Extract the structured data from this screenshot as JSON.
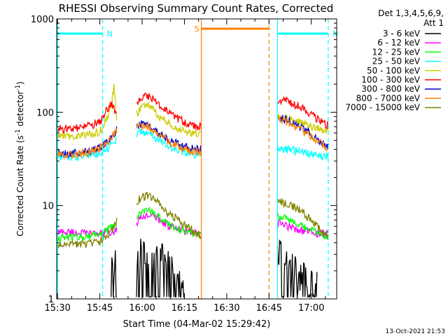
{
  "chart_data": {
    "type": "line",
    "title": "RHESSI Observing Summary Count Rates, Corrected",
    "xlabel": "Start Time (04-Mar-02 15:29:42)",
    "ylabel": "Corrected Count Rate (s-1 detector-1)",
    "ylabel_parts": {
      "pre": "Corrected Count Rate (s",
      "sup1": "-1",
      "mid": " detector",
      "sup2": "-1",
      "post": ")"
    },
    "y_scale": "log",
    "ylim": [
      1,
      1000
    ],
    "xlim": [
      "15:30",
      "17:09"
    ],
    "x_ticks": [
      "15:30",
      "15:45",
      "16:00",
      "16:15",
      "16:30",
      "16:45",
      "17:00"
    ],
    "y_ticks": [
      "1",
      "10",
      "100",
      "1000"
    ],
    "legend_header": [
      "Det 1,3,4,5,6,9,",
      "Att 1"
    ],
    "legend_position": "right",
    "footer": "13-Oct-2021 21:53",
    "gaps": [
      [
        "15:51",
        "15:58"
      ],
      [
        "16:21",
        "16:48"
      ]
    ],
    "annotations": [
      {
        "text": "N",
        "color": "#00ffff",
        "start": "15:30",
        "end": "15:46"
      },
      {
        "text": "N",
        "color": "#00ffff",
        "start": "16:48",
        "end": "17:06"
      },
      {
        "text": "S",
        "color": "#ff8000",
        "start": "16:21",
        "end": "16:45"
      }
    ],
    "series": [
      {
        "name": "3 - 6 keV",
        "color": "#000000",
        "type": "counts",
        "points": [
          [
            "15:49",
            1.8
          ],
          [
            "15:50",
            2.2
          ],
          [
            "15:51",
            2.5
          ],
          [
            "15:58",
            2.9
          ],
          [
            "16:00",
            3.3
          ],
          [
            "16:02",
            3.4
          ],
          [
            "16:04",
            3.3
          ],
          [
            "16:06",
            3.0
          ],
          [
            "16:08",
            2.5
          ],
          [
            "16:10",
            2.0
          ],
          [
            "16:12",
            1.7
          ],
          [
            "16:15",
            1.4
          ],
          [
            "16:48",
            3.0
          ],
          [
            "16:50",
            2.8
          ],
          [
            "16:52",
            2.5
          ],
          [
            "16:55",
            2.0
          ],
          [
            "16:58",
            1.7
          ],
          [
            "17:00",
            1.5
          ],
          [
            "17:02",
            1.3
          ]
        ]
      },
      {
        "name": "6 - 12 keV",
        "color": "#ff00ff",
        "points": [
          [
            "15:30",
            5.2
          ],
          [
            "15:35",
            5.2
          ],
          [
            "15:40",
            5.0
          ],
          [
            "15:45",
            5.0
          ],
          [
            "15:48",
            5.2
          ],
          [
            "15:51",
            5.5
          ],
          [
            "15:58",
            6.5
          ],
          [
            "16:00",
            7.5
          ],
          [
            "16:02",
            8.0
          ],
          [
            "16:05",
            7.5
          ],
          [
            "16:08",
            6.5
          ],
          [
            "16:10",
            6.0
          ],
          [
            "16:13",
            5.5
          ],
          [
            "16:16",
            5.3
          ],
          [
            "16:19",
            5.0
          ],
          [
            "16:21",
            5.0
          ],
          [
            "16:48",
            6.5
          ],
          [
            "16:52",
            6.0
          ],
          [
            "16:56",
            5.5
          ],
          [
            "17:00",
            5.2
          ],
          [
            "17:03",
            5.0
          ],
          [
            "17:06",
            5.0
          ]
        ]
      },
      {
        "name": "12 - 25 keV",
        "color": "#00ff00",
        "points": [
          [
            "15:30",
            4.5
          ],
          [
            "15:35",
            4.6
          ],
          [
            "15:40",
            4.7
          ],
          [
            "15:45",
            5.0
          ],
          [
            "15:48",
            5.5
          ],
          [
            "15:50",
            6.0
          ],
          [
            "15:51",
            6.3
          ],
          [
            "15:58",
            7.5
          ],
          [
            "16:00",
            8.5
          ],
          [
            "16:02",
            9.0
          ],
          [
            "16:04",
            8.5
          ],
          [
            "16:06",
            7.5
          ],
          [
            "16:08",
            6.8
          ],
          [
            "16:11",
            6.0
          ],
          [
            "16:14",
            5.5
          ],
          [
            "16:17",
            5.2
          ],
          [
            "16:21",
            5.0
          ],
          [
            "16:48",
            8.0
          ],
          [
            "16:52",
            7.0
          ],
          [
            "16:56",
            6.0
          ],
          [
            "17:00",
            5.5
          ],
          [
            "17:03",
            5.0
          ],
          [
            "17:06",
            4.6
          ]
        ]
      },
      {
        "name": "25 - 50 keV",
        "color": "#00ffff",
        "points": [
          [
            "15:30",
            33
          ],
          [
            "15:34",
            33
          ],
          [
            "15:38",
            34
          ],
          [
            "15:42",
            35
          ],
          [
            "15:45",
            37
          ],
          [
            "15:48",
            42
          ],
          [
            "15:50",
            48
          ],
          [
            "15:51",
            52
          ],
          [
            "15:58",
            58
          ],
          [
            "16:00",
            62
          ],
          [
            "16:02",
            60
          ],
          [
            "16:04",
            55
          ],
          [
            "16:06",
            50
          ],
          [
            "16:08",
            45
          ],
          [
            "16:11",
            41
          ],
          [
            "16:14",
            38
          ],
          [
            "16:17",
            36
          ],
          [
            "16:21",
            35
          ],
          [
            "16:48",
            42
          ],
          [
            "16:52",
            40
          ],
          [
            "16:56",
            38
          ],
          [
            "17:00",
            36
          ],
          [
            "17:03",
            34
          ],
          [
            "17:06",
            33
          ]
        ]
      },
      {
        "name": "50 - 100 keV",
        "color": "#cccc00",
        "points": [
          [
            "15:30",
            55
          ],
          [
            "15:34",
            55
          ],
          [
            "15:38",
            56
          ],
          [
            "15:42",
            58
          ],
          [
            "15:45",
            62
          ],
          [
            "15:47",
            80
          ],
          [
            "15:49",
            115
          ],
          [
            "15:50",
            195
          ],
          [
            "15:51",
            90
          ],
          [
            "15:58",
            95
          ],
          [
            "16:00",
            115
          ],
          [
            "16:02",
            120
          ],
          [
            "16:04",
            105
          ],
          [
            "16:06",
            92
          ],
          [
            "16:08",
            82
          ],
          [
            "16:11",
            72
          ],
          [
            "16:14",
            64
          ],
          [
            "16:17",
            60
          ],
          [
            "16:21",
            58
          ],
          [
            "16:48",
            88
          ],
          [
            "16:52",
            85
          ],
          [
            "16:56",
            78
          ],
          [
            "17:00",
            70
          ],
          [
            "17:03",
            66
          ],
          [
            "17:06",
            63
          ]
        ]
      },
      {
        "name": "100 - 300 keV",
        "color": "#ff0000",
        "points": [
          [
            "15:30",
            66
          ],
          [
            "15:34",
            67
          ],
          [
            "15:38",
            68
          ],
          [
            "15:42",
            72
          ],
          [
            "15:45",
            78
          ],
          [
            "15:47",
            100
          ],
          [
            "15:49",
            125
          ],
          [
            "15:50",
            110
          ],
          [
            "15:51",
            100
          ],
          [
            "15:58",
            120
          ],
          [
            "16:00",
            145
          ],
          [
            "16:02",
            150
          ],
          [
            "16:04",
            138
          ],
          [
            "16:06",
            120
          ],
          [
            "16:08",
            105
          ],
          [
            "16:11",
            92
          ],
          [
            "16:14",
            82
          ],
          [
            "16:17",
            72
          ],
          [
            "16:21",
            70
          ],
          [
            "16:48",
            140
          ],
          [
            "16:52",
            130
          ],
          [
            "16:56",
            115
          ],
          [
            "17:00",
            95
          ],
          [
            "17:03",
            82
          ],
          [
            "17:06",
            72
          ]
        ]
      },
      {
        "name": "300 - 800 keV",
        "color": "#0000cc",
        "points": [
          [
            "15:30",
            36
          ],
          [
            "15:34",
            36
          ],
          [
            "15:38",
            37
          ],
          [
            "15:42",
            39
          ],
          [
            "15:45",
            42
          ],
          [
            "15:48",
            50
          ],
          [
            "15:50",
            60
          ],
          [
            "15:51",
            65
          ],
          [
            "15:58",
            70
          ],
          [
            "16:00",
            75
          ],
          [
            "16:02",
            74
          ],
          [
            "16:04",
            68
          ],
          [
            "16:06",
            60
          ],
          [
            "16:08",
            54
          ],
          [
            "16:11",
            48
          ],
          [
            "16:14",
            44
          ],
          [
            "16:17",
            41
          ],
          [
            "16:21",
            40
          ],
          [
            "16:48",
            88
          ],
          [
            "16:52",
            82
          ],
          [
            "16:56",
            70
          ],
          [
            "17:00",
            58
          ],
          [
            "17:03",
            50
          ],
          [
            "17:06",
            44
          ]
        ]
      },
      {
        "name": "800 - 7000 keV",
        "color": "#ff8000",
        "points": [
          [
            "15:30",
            35
          ],
          [
            "15:34",
            35
          ],
          [
            "15:38",
            36
          ],
          [
            "15:42",
            38
          ],
          [
            "15:45",
            41
          ],
          [
            "15:48",
            48
          ],
          [
            "15:50",
            58
          ],
          [
            "15:51",
            62
          ],
          [
            "15:58",
            68
          ],
          [
            "16:00",
            72
          ],
          [
            "16:02",
            71
          ],
          [
            "16:04",
            65
          ],
          [
            "16:06",
            58
          ],
          [
            "16:08",
            52
          ],
          [
            "16:11",
            46
          ],
          [
            "16:14",
            42
          ],
          [
            "16:17",
            39
          ],
          [
            "16:21",
            38
          ],
          [
            "16:48",
            84
          ],
          [
            "16:52",
            78
          ],
          [
            "16:56",
            66
          ],
          [
            "17:00",
            55
          ],
          [
            "17:03",
            47
          ],
          [
            "17:06",
            42
          ]
        ]
      },
      {
        "name": "7000 - 15000 keV",
        "color": "#808000",
        "points": [
          [
            "15:30",
            3.7
          ],
          [
            "15:35",
            3.8
          ],
          [
            "15:40",
            3.9
          ],
          [
            "15:45",
            4.1
          ],
          [
            "15:48",
            4.8
          ],
          [
            "15:50",
            6.0
          ],
          [
            "15:51",
            7.0
          ],
          [
            "15:58",
            11
          ],
          [
            "16:00",
            12.5
          ],
          [
            "16:02",
            12.8
          ],
          [
            "16:04",
            12.0
          ],
          [
            "16:06",
            10.5
          ],
          [
            "16:08",
            9.0
          ],
          [
            "16:10",
            8.0
          ],
          [
            "16:13",
            7.0
          ],
          [
            "16:16",
            6.0
          ],
          [
            "16:19",
            5.0
          ],
          [
            "16:21",
            4.8
          ],
          [
            "16:48",
            11
          ],
          [
            "16:52",
            10.5
          ],
          [
            "16:56",
            9.0
          ],
          [
            "17:00",
            7.0
          ],
          [
            "17:03",
            5.5
          ],
          [
            "17:06",
            4.5
          ]
        ]
      }
    ]
  }
}
